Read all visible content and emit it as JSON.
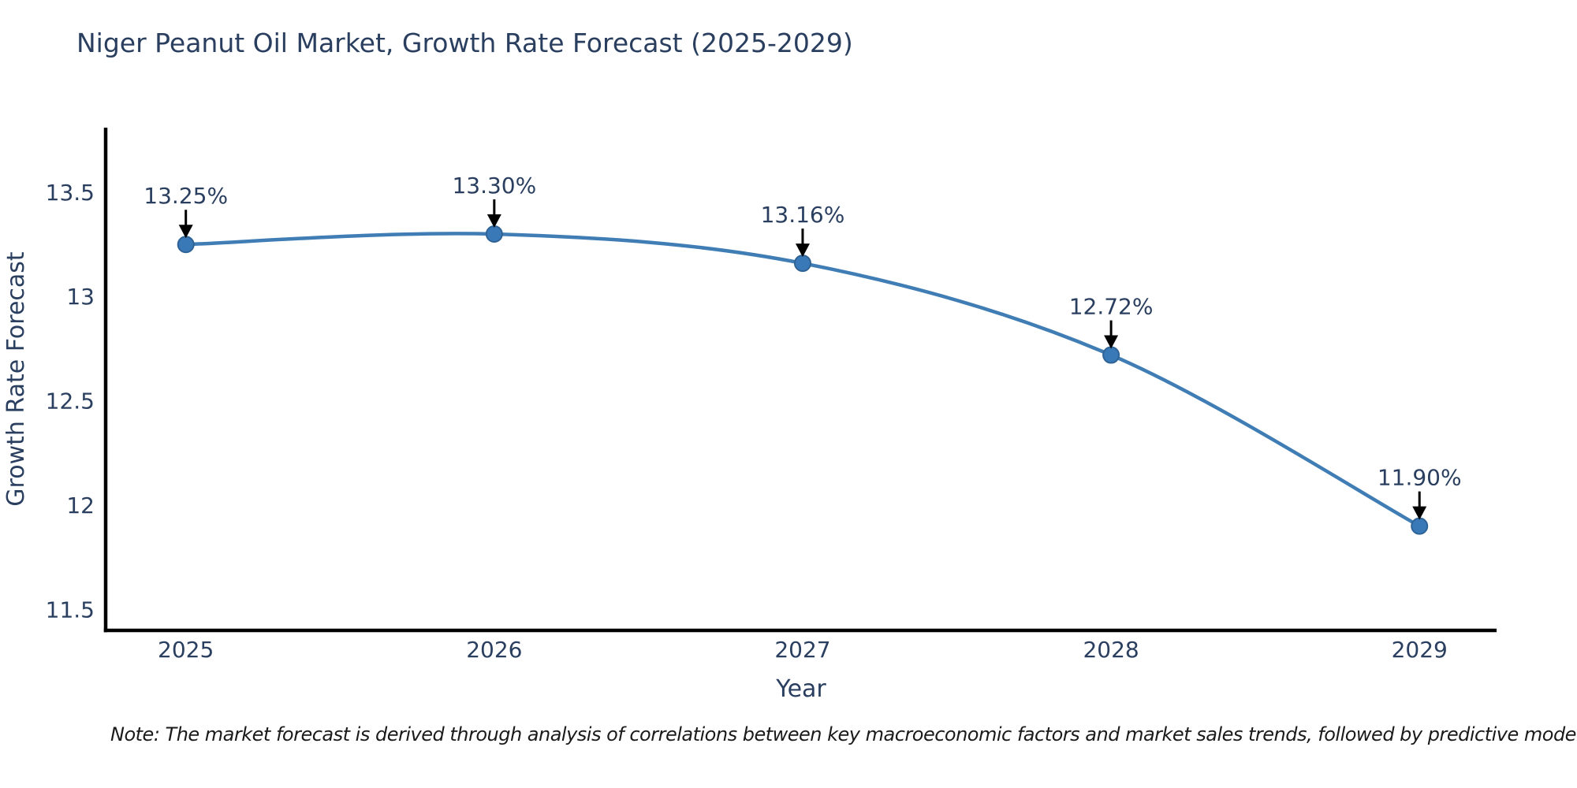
{
  "title": "Niger Peanut Oil Market, Growth Rate Forecast (2025-2029)",
  "note": "Note: The market forecast is derived through analysis of correlations between key macroeconomic factors and market sales trends, followed by predictive modeling to project future sal",
  "chart_data": {
    "type": "line",
    "title": "Niger Peanut Oil Market, Growth Rate Forecast (2025-2029)",
    "xlabel": "Year",
    "ylabel": "Growth Rate Forecast",
    "x": [
      2025,
      2026,
      2027,
      2028,
      2029
    ],
    "values": [
      13.25,
      13.3,
      13.16,
      12.72,
      11.9
    ],
    "annotations": [
      "13.25%",
      "13.30%",
      "13.16%",
      "12.72%",
      "11.90%"
    ],
    "xtick_labels": [
      "2025",
      "2026",
      "2027",
      "2028",
      "2029"
    ],
    "yticks": [
      11.5,
      12,
      12.5,
      13,
      13.5
    ],
    "ytick_labels": [
      "11.5",
      "12",
      "12.5",
      "13",
      "13.5"
    ],
    "xlim": [
      2024.74,
      2029.25
    ],
    "ylim": [
      11.4,
      13.81
    ],
    "grid": false,
    "legend_position": "none",
    "colors": {
      "line": "#3f7db4",
      "marker_fill": "#3a79b8",
      "marker_edge": "#2f6396",
      "axis": "#000000",
      "text": "#2a3f5f",
      "annotation_arrow": "#000000",
      "note_text": "#1a1a1a",
      "background": "#ffffff"
    }
  }
}
